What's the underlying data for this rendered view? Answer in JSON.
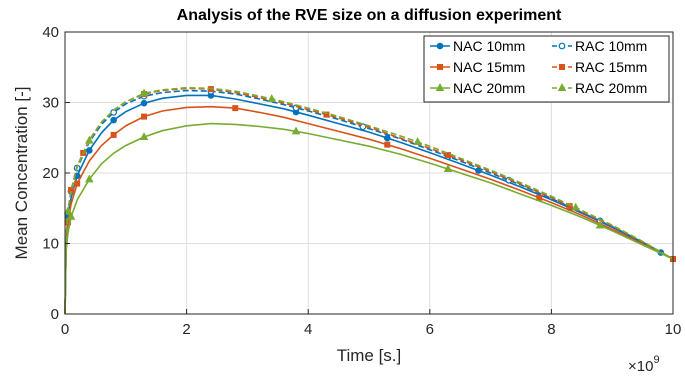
{
  "chart_data": {
    "type": "line",
    "title": "Analysis of the RVE size on a diffusion experiment",
    "xlabel": "Time [s.]",
    "ylabel": "Mean Concentration [-]",
    "x_exponent_base": "×10",
    "x_exponent": "9",
    "xlim": [
      0,
      10
    ],
    "ylim": [
      0,
      40
    ],
    "x_scale": 1000000000.0,
    "xticks": [
      0,
      2,
      4,
      6,
      8,
      10
    ],
    "yticks": [
      0,
      10,
      20,
      30,
      40
    ],
    "xtick_labels": [
      "0",
      "2",
      "4",
      "6",
      "8",
      "10"
    ],
    "ytick_labels": [
      "0",
      "10",
      "20",
      "30",
      "40"
    ],
    "grid": true,
    "legend_position": "top-right",
    "legend_columns": 2,
    "series": [
      {
        "name": "NAC 10mm",
        "color": "#0072BD",
        "dash": "solid",
        "marker": "circle-filled",
        "x": [
          0,
          0.02,
          0.05,
          0.1,
          0.2,
          0.4,
          0.6,
          0.8,
          1.0,
          1.3,
          1.6,
          2.0,
          2.4,
          2.8,
          3.2,
          3.6,
          4.0,
          4.5,
          5.0,
          5.5,
          6.0,
          6.5,
          7.0,
          7.5,
          8.0,
          8.5,
          9.0,
          9.5,
          10.0
        ],
        "y": [
          0,
          10.5,
          13.8,
          16.5,
          19.6,
          23.2,
          25.7,
          27.5,
          28.7,
          29.9,
          30.6,
          31.0,
          31.0,
          30.5,
          29.8,
          29.1,
          28.2,
          27.0,
          25.8,
          24.4,
          22.9,
          21.3,
          19.7,
          18.0,
          16.2,
          14.3,
          12.3,
          10.1,
          7.8
        ],
        "marker_x": [
          0.05,
          0.2,
          0.4,
          0.8,
          1.3,
          2.4,
          3.8,
          5.3,
          6.8,
          8.3,
          9.8
        ]
      },
      {
        "name": "RAC 10mm",
        "color": "#0072BD",
        "dash": "dashed",
        "marker": "circle-open",
        "x": [
          0,
          0.02,
          0.05,
          0.1,
          0.2,
          0.4,
          0.6,
          0.8,
          1.0,
          1.3,
          1.6,
          2.0,
          2.4,
          2.8,
          3.2,
          3.6,
          4.0,
          4.5,
          5.0,
          5.5,
          6.0,
          6.5,
          7.0,
          7.5,
          8.0,
          8.5,
          9.0,
          9.5,
          10.0
        ],
        "y": [
          0,
          11.0,
          14.5,
          17.4,
          20.7,
          24.4,
          26.9,
          28.6,
          29.8,
          30.9,
          31.4,
          31.7,
          31.6,
          31.2,
          30.5,
          29.7,
          28.8,
          27.6,
          26.3,
          24.9,
          23.3,
          21.7,
          20.0,
          18.3,
          16.4,
          14.4,
          12.4,
          10.2,
          7.8
        ],
        "marker_x": [
          0.1,
          0.2,
          0.8,
          1.3,
          2.4,
          3.8,
          4.9,
          6.3,
          7.3,
          8.8
        ]
      },
      {
        "name": "NAC 15mm",
        "color": "#D95319",
        "dash": "solid",
        "marker": "square",
        "x": [
          0,
          0.02,
          0.05,
          0.1,
          0.2,
          0.4,
          0.6,
          0.8,
          1.0,
          1.3,
          1.6,
          2.0,
          2.4,
          2.8,
          3.2,
          3.6,
          4.0,
          4.5,
          5.0,
          5.5,
          6.0,
          6.5,
          7.0,
          7.5,
          8.0,
          8.5,
          9.0,
          9.5,
          10.0
        ],
        "y": [
          0,
          10.0,
          13.0,
          15.6,
          18.5,
          21.7,
          23.9,
          25.4,
          26.7,
          28.0,
          28.8,
          29.3,
          29.4,
          29.2,
          28.6,
          27.9,
          27.0,
          25.9,
          24.8,
          23.5,
          22.1,
          20.6,
          19.1,
          17.5,
          15.8,
          14.0,
          12.0,
          9.9,
          7.8
        ],
        "marker_x": [
          0.05,
          0.2,
          0.8,
          1.3,
          2.8,
          5.3,
          7.8,
          10.0
        ]
      },
      {
        "name": "RAC 15mm",
        "color": "#D95319",
        "dash": "dashed",
        "marker": "square",
        "x": [
          0,
          0.02,
          0.05,
          0.1,
          0.2,
          0.4,
          0.6,
          0.8,
          1.0,
          1.3,
          1.6,
          2.0,
          2.4,
          2.8,
          3.2,
          3.6,
          4.0,
          4.5,
          5.0,
          5.5,
          6.0,
          6.5,
          7.0,
          7.5,
          8.0,
          8.5,
          9.0,
          9.5,
          10.0
        ],
        "y": [
          0,
          11.1,
          14.7,
          17.6,
          21.0,
          24.7,
          27.2,
          28.9,
          30.1,
          31.2,
          31.7,
          32.0,
          31.9,
          31.4,
          30.7,
          29.9,
          29.0,
          27.8,
          26.5,
          25.0,
          23.5,
          21.9,
          20.2,
          18.4,
          16.5,
          14.5,
          12.5,
          10.2,
          7.8
        ],
        "marker_x": [
          0.1,
          0.3,
          1.3,
          2.4,
          4.3,
          6.3,
          8.3
        ]
      },
      {
        "name": "NAC 20mm",
        "color": "#77AC30",
        "dash": "solid",
        "marker": "triangle-filled",
        "x": [
          0,
          0.02,
          0.05,
          0.1,
          0.2,
          0.4,
          0.6,
          0.8,
          1.0,
          1.3,
          1.6,
          2.0,
          2.4,
          2.8,
          3.2,
          3.6,
          4.0,
          4.5,
          5.0,
          5.5,
          6.0,
          6.5,
          7.0,
          7.5,
          8.0,
          8.5,
          9.0,
          9.5,
          10.0
        ],
        "y": [
          0,
          9.0,
          11.5,
          13.8,
          16.2,
          19.1,
          21.3,
          22.8,
          23.9,
          25.1,
          26.0,
          26.7,
          27.0,
          26.9,
          26.6,
          26.2,
          25.6,
          24.7,
          23.8,
          22.7,
          21.4,
          20.0,
          18.6,
          17.0,
          15.4,
          13.7,
          11.8,
          9.8,
          7.8
        ],
        "marker_x": [
          0.1,
          0.4,
          1.3,
          3.8,
          6.3,
          8.8
        ]
      },
      {
        "name": "RAC 20mm",
        "color": "#77AC30",
        "dash": "dashed",
        "marker": "triangle-filled",
        "x": [
          0,
          0.02,
          0.05,
          0.1,
          0.2,
          0.4,
          0.6,
          0.8,
          1.0,
          1.3,
          1.6,
          2.0,
          2.4,
          2.8,
          3.2,
          3.6,
          4.0,
          4.5,
          5.0,
          5.5,
          6.0,
          6.5,
          7.0,
          7.5,
          8.0,
          8.5,
          9.0,
          9.5,
          10.0
        ],
        "y": [
          0,
          11.0,
          14.6,
          17.5,
          20.9,
          24.6,
          27.2,
          28.9,
          30.1,
          31.3,
          31.8,
          32.1,
          32.0,
          31.6,
          30.9,
          30.1,
          29.2,
          28.0,
          26.7,
          25.3,
          23.8,
          22.1,
          20.4,
          18.6,
          16.7,
          14.7,
          12.6,
          10.3,
          7.8
        ],
        "marker_x": [
          0.05,
          0.4,
          1.3,
          3.4,
          5.8,
          8.4
        ]
      }
    ]
  }
}
